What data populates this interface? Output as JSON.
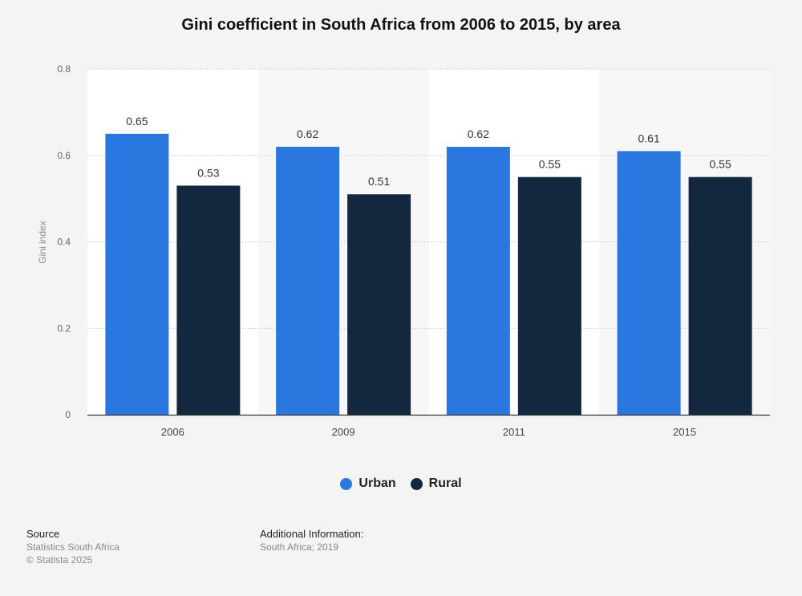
{
  "chart_data": {
    "type": "bar",
    "title": "Gini coefficient in South Africa from 2006 to 2015, by area",
    "ylabel": "Gini index",
    "categories": [
      "2006",
      "2009",
      "2011",
      "2015"
    ],
    "series": [
      {
        "name": "Urban",
        "values": [
          0.65,
          0.62,
          0.62,
          0.61
        ],
        "color": "#2a77e0"
      },
      {
        "name": "Rural",
        "values": [
          0.53,
          0.51,
          0.55,
          0.55
        ],
        "color": "#13273f"
      }
    ],
    "ylim": [
      0,
      0.8
    ],
    "yticks": [
      "0",
      "0.2",
      "0.4",
      "0.6",
      "0.8"
    ],
    "grid": true,
    "legend_position": "bottom-center"
  },
  "footer": {
    "source_heading": "Source",
    "source_lines": [
      "Statistics South Africa",
      "© Statista 2025"
    ],
    "info_heading": "Additional Information:",
    "info_text": "South Africa; 2019"
  }
}
